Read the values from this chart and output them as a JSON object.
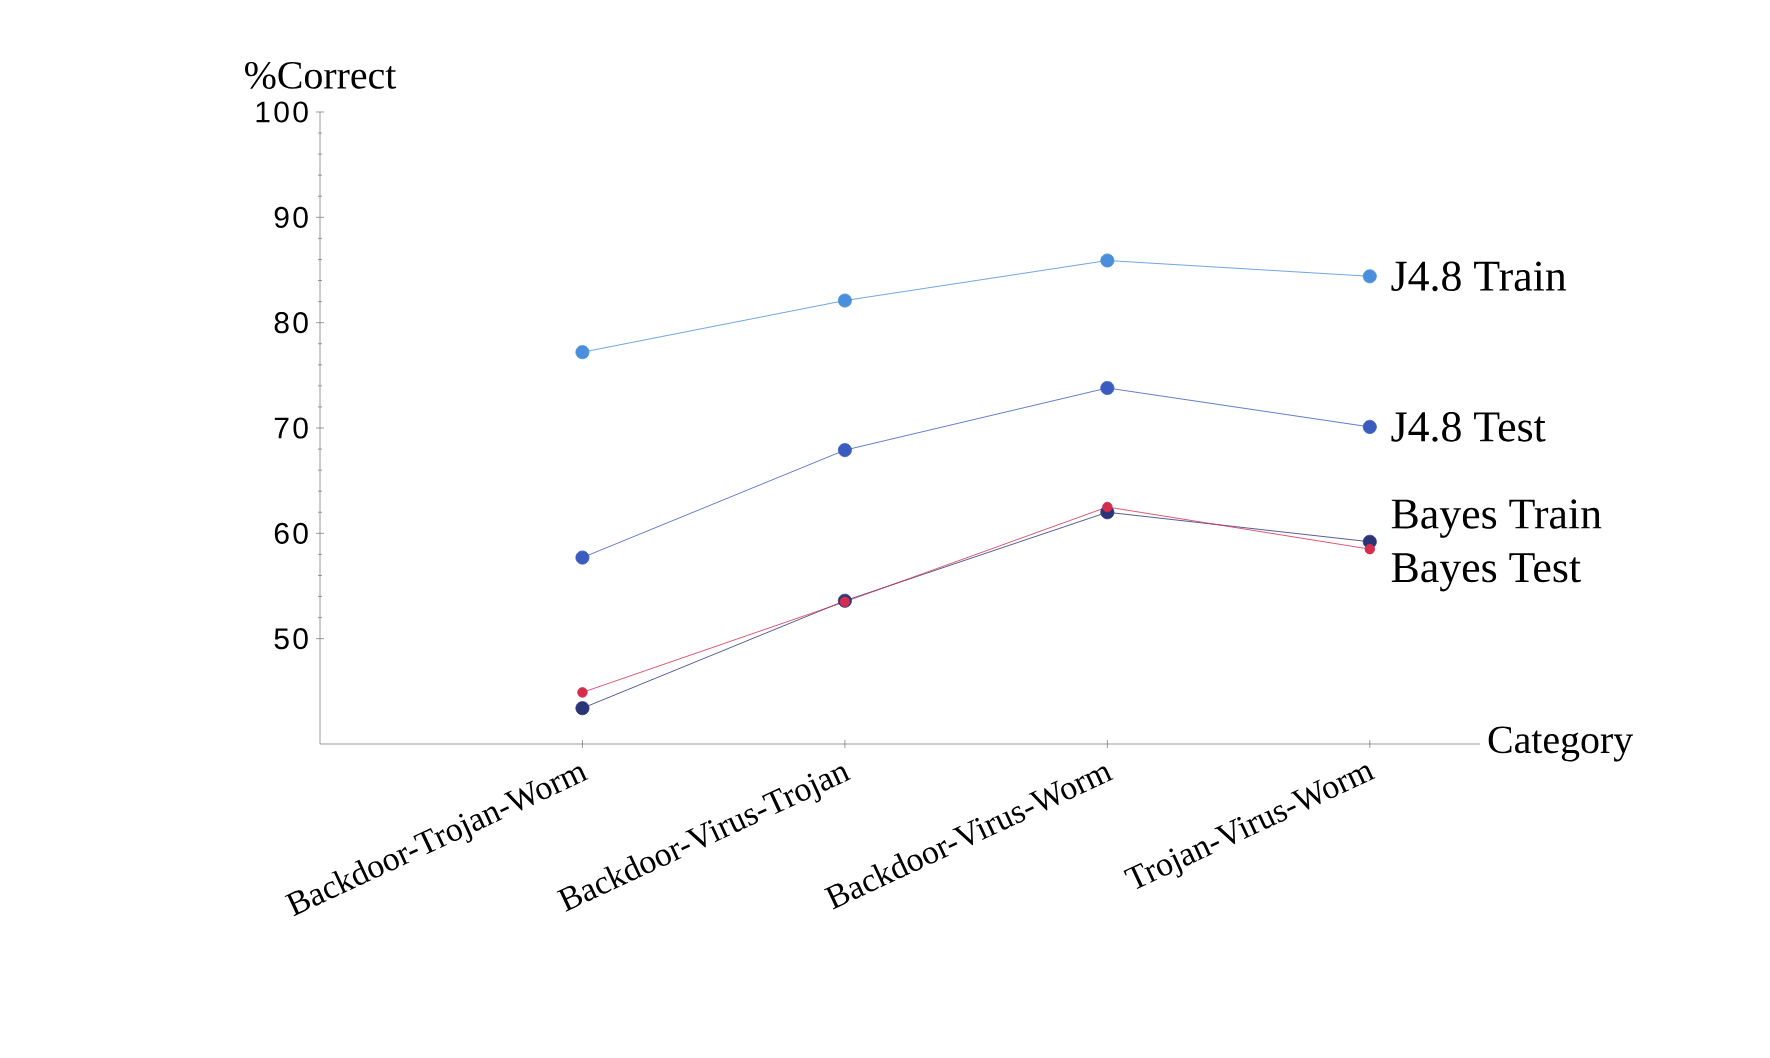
{
  "chart_data": {
    "type": "line",
    "xlabel": "Category",
    "ylabel": "%Correct",
    "categories": [
      "Backdoor-Trojan-Worm",
      "Backdoor-Virus-Trojan",
      "Backdoor-Virus-Worm",
      "Trojan-Virus-Worm"
    ],
    "ylim": [
      40,
      100
    ],
    "yticks": [
      50,
      60,
      70,
      80,
      90,
      100
    ],
    "marker": "circle",
    "grid": false,
    "legend": false,
    "series": [
      {
        "name": "J4.8 Train",
        "color": "#4a8fdc",
        "values": [
          77.2,
          82.1,
          85.9,
          84.4
        ]
      },
      {
        "name": "J4.8 Test",
        "color": "#3a5cc0",
        "values": [
          57.7,
          67.9,
          73.8,
          70.1
        ]
      },
      {
        "name": "Bayes Train",
        "color": "#2c3478",
        "values": [
          43.4,
          53.6,
          62.0,
          59.2
        ]
      },
      {
        "name": "Bayes Test",
        "color": "#d42e4c",
        "values": [
          44.9,
          53.5,
          62.5,
          58.5
        ]
      }
    ]
  }
}
